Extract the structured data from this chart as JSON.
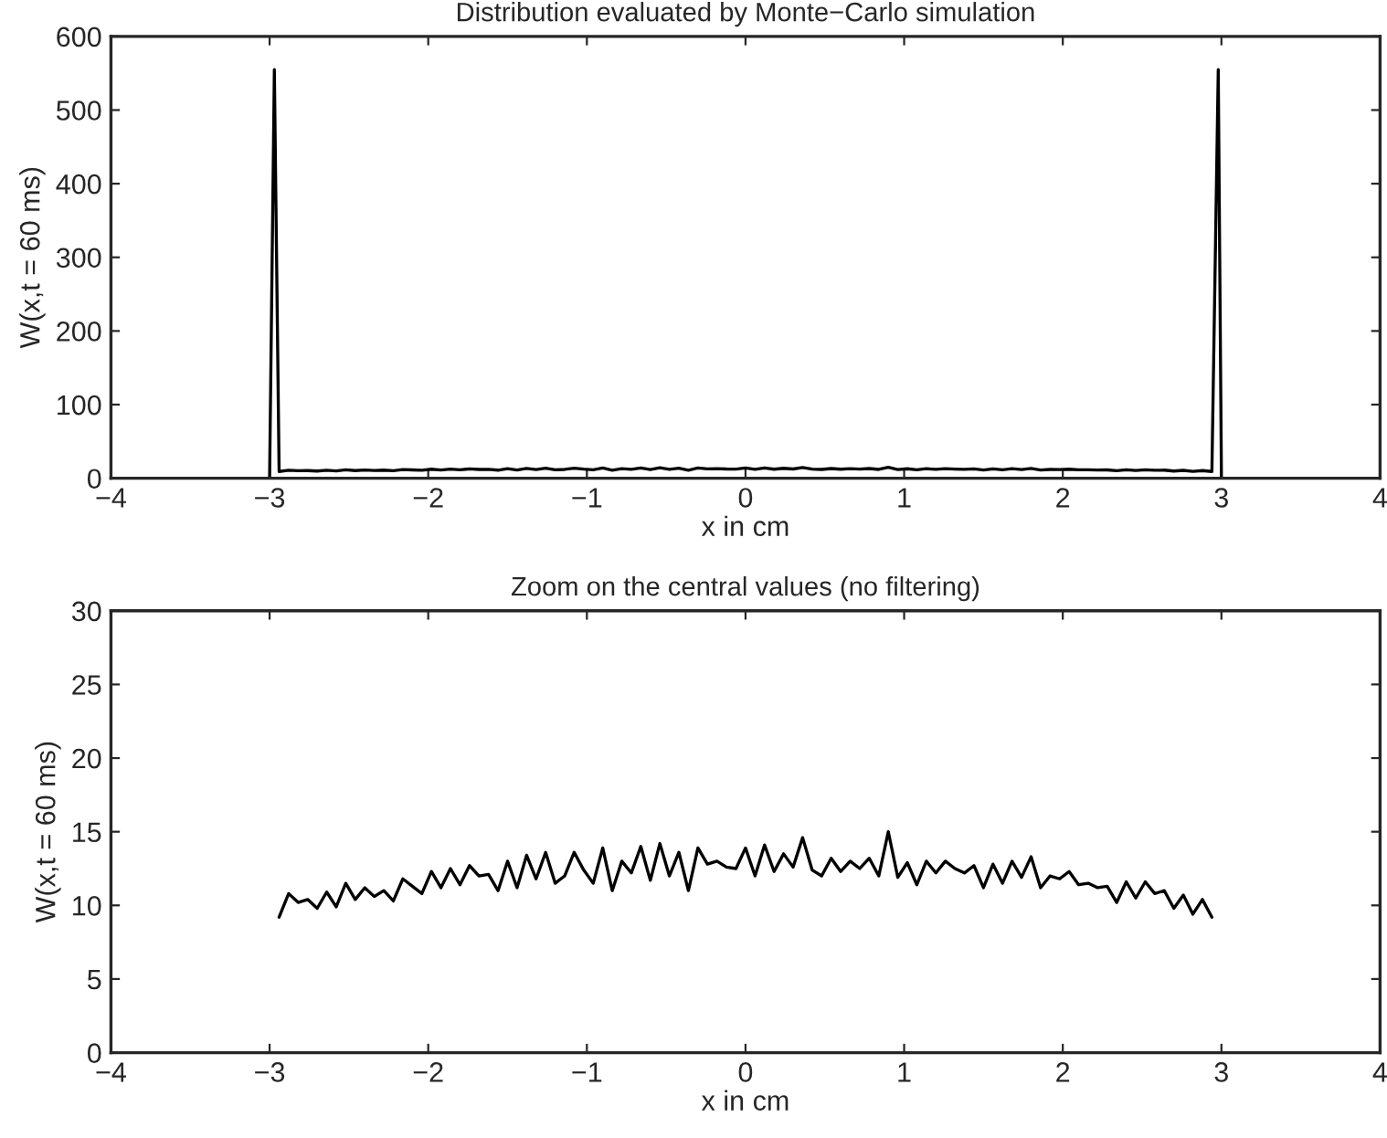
{
  "chart_data": [
    {
      "type": "line",
      "title": "Distribution evaluated by Monte−Carlo simulation",
      "xlabel": "x in cm",
      "ylabel": "W(x,t = 60 ms)",
      "color": "#000000",
      "x": [
        -4,
        -3.0,
        -2.97,
        -2.94,
        -2.88,
        -2.82,
        -2.76,
        -2.7,
        -2.64,
        -2.58,
        -2.52,
        -2.46,
        -2.4,
        -2.34,
        -2.28,
        -2.22,
        -2.16,
        -2.1,
        -2.04,
        -1.98,
        -1.92,
        -1.86,
        -1.8,
        -1.74,
        -1.68,
        -1.62,
        -1.56,
        -1.5,
        -1.44,
        -1.38,
        -1.32,
        -1.26,
        -1.2,
        -1.14,
        -1.08,
        -1.02,
        -0.96,
        -0.9,
        -0.84,
        -0.78,
        -0.72,
        -0.66,
        -0.6,
        -0.54,
        -0.48,
        -0.42,
        -0.36,
        -0.3,
        -0.24,
        -0.18,
        -0.12,
        -0.06,
        0.0,
        0.06,
        0.12,
        0.18,
        0.24,
        0.3,
        0.36,
        0.42,
        0.48,
        0.54,
        0.6,
        0.66,
        0.72,
        0.78,
        0.84,
        0.9,
        0.96,
        1.02,
        1.08,
        1.14,
        1.2,
        1.26,
        1.32,
        1.38,
        1.44,
        1.5,
        1.56,
        1.62,
        1.68,
        1.74,
        1.8,
        1.86,
        1.92,
        1.98,
        2.04,
        2.1,
        2.16,
        2.22,
        2.28,
        2.34,
        2.4,
        2.46,
        2.52,
        2.58,
        2.64,
        2.7,
        2.76,
        2.82,
        2.88,
        2.94,
        2.98,
        3.0,
        4
      ],
      "values": [
        0,
        0,
        555,
        9.2,
        10.8,
        10.2,
        10.4,
        9.8,
        10.9,
        9.9,
        11.5,
        10.4,
        11.2,
        10.6,
        11.0,
        10.3,
        11.8,
        11.3,
        10.8,
        12.3,
        11.2,
        12.5,
        11.4,
        12.7,
        12.0,
        12.1,
        11.0,
        13.0,
        11.2,
        13.4,
        11.8,
        13.6,
        11.5,
        12.0,
        13.6,
        12.4,
        11.5,
        13.9,
        11.0,
        13.0,
        12.2,
        14.0,
        11.7,
        14.2,
        12.0,
        13.6,
        11.0,
        13.9,
        12.8,
        13.0,
        12.6,
        12.5,
        13.9,
        12.0,
        14.1,
        12.3,
        13.5,
        12.6,
        14.6,
        12.4,
        12.0,
        13.2,
        12.3,
        13.0,
        12.5,
        13.2,
        12.0,
        15.0,
        11.9,
        12.9,
        11.4,
        13.0,
        12.2,
        13.0,
        12.5,
        12.2,
        12.7,
        11.2,
        12.8,
        11.5,
        13.0,
        11.9,
        13.3,
        11.2,
        12.0,
        11.8,
        12.3,
        11.4,
        11.5,
        11.2,
        11.3,
        10.2,
        11.6,
        10.5,
        11.6,
        10.8,
        11.0,
        9.8,
        10.7,
        9.4,
        10.4,
        9.2,
        555,
        0,
        0
      ],
      "xlim": [
        -4,
        4
      ],
      "xticks": [
        -4,
        -3,
        -2,
        -1,
        0,
        1,
        2,
        3,
        4
      ],
      "ylim": [
        0,
        600
      ],
      "yticks": [
        0,
        100,
        200,
        300,
        400,
        500,
        600
      ],
      "grid": false,
      "legend": false
    },
    {
      "type": "line",
      "title": "Zoom on the central values (no filtering)",
      "xlabel": "x in cm",
      "ylabel": "W(x,t = 60 ms)",
      "color": "#000000",
      "x": [
        -4,
        -3.0,
        -2.97,
        -2.94,
        -2.88,
        -2.82,
        -2.76,
        -2.7,
        -2.64,
        -2.58,
        -2.52,
        -2.46,
        -2.4,
        -2.34,
        -2.28,
        -2.22,
        -2.16,
        -2.1,
        -2.04,
        -1.98,
        -1.92,
        -1.86,
        -1.8,
        -1.74,
        -1.68,
        -1.62,
        -1.56,
        -1.5,
        -1.44,
        -1.38,
        -1.32,
        -1.26,
        -1.2,
        -1.14,
        -1.08,
        -1.02,
        -0.96,
        -0.9,
        -0.84,
        -0.78,
        -0.72,
        -0.66,
        -0.6,
        -0.54,
        -0.48,
        -0.42,
        -0.36,
        -0.3,
        -0.24,
        -0.18,
        -0.12,
        -0.06,
        0.0,
        0.06,
        0.12,
        0.18,
        0.24,
        0.3,
        0.36,
        0.42,
        0.48,
        0.54,
        0.6,
        0.66,
        0.72,
        0.78,
        0.84,
        0.9,
        0.96,
        1.02,
        1.08,
        1.14,
        1.2,
        1.26,
        1.32,
        1.38,
        1.44,
        1.5,
        1.56,
        1.62,
        1.68,
        1.74,
        1.8,
        1.86,
        1.92,
        1.98,
        2.04,
        2.1,
        2.16,
        2.22,
        2.28,
        2.34,
        2.4,
        2.46,
        2.52,
        2.58,
        2.64,
        2.7,
        2.76,
        2.82,
        2.88,
        2.94,
        2.98,
        3.0,
        4
      ],
      "values": [
        0,
        0,
        null,
        9.2,
        10.8,
        10.2,
        10.4,
        9.8,
        10.9,
        9.9,
        11.5,
        10.4,
        11.2,
        10.6,
        11.0,
        10.3,
        11.8,
        11.3,
        10.8,
        12.3,
        11.2,
        12.5,
        11.4,
        12.7,
        12.0,
        12.1,
        11.0,
        13.0,
        11.2,
        13.4,
        11.8,
        13.6,
        11.5,
        12.0,
        13.6,
        12.4,
        11.5,
        13.9,
        11.0,
        13.0,
        12.2,
        14.0,
        11.7,
        14.2,
        12.0,
        13.6,
        11.0,
        13.9,
        12.8,
        13.0,
        12.6,
        12.5,
        13.9,
        12.0,
        14.1,
        12.3,
        13.5,
        12.6,
        14.6,
        12.4,
        12.0,
        13.2,
        12.3,
        13.0,
        12.5,
        13.2,
        12.0,
        15.0,
        11.9,
        12.9,
        11.4,
        13.0,
        12.2,
        13.0,
        12.5,
        12.2,
        12.7,
        11.2,
        12.8,
        11.5,
        13.0,
        11.9,
        13.3,
        11.2,
        12.0,
        11.8,
        12.3,
        11.4,
        11.5,
        11.2,
        11.3,
        10.2,
        11.6,
        10.5,
        11.6,
        10.8,
        11.0,
        9.8,
        10.7,
        9.4,
        10.4,
        9.2,
        null,
        0,
        0
      ],
      "xlim": [
        -4,
        4
      ],
      "xticks": [
        -4,
        -3,
        -2,
        -1,
        0,
        1,
        2,
        3,
        4
      ],
      "ylim": [
        0,
        30
      ],
      "yticks": [
        0,
        5,
        10,
        15,
        20,
        25,
        30
      ],
      "grid": false,
      "legend": false
    }
  ]
}
